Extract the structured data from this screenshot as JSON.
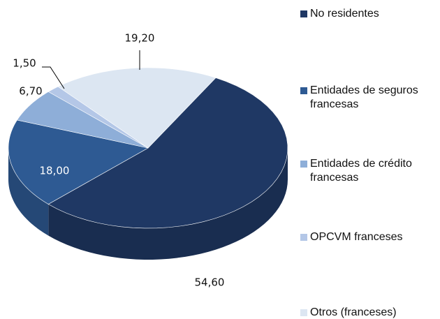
{
  "chart_data": {
    "type": "pie",
    "categories": [
      "No residentes",
      "Entidades de seguros francesas",
      "Entidades de crédito francesas",
      "OPCVM franceses",
      "Otros (franceses)"
    ],
    "values": [
      54.6,
      18.0,
      6.7,
      1.5,
      19.2
    ],
    "value_labels": [
      "54,60",
      "18,00",
      "6,70",
      "1,50",
      "19,20"
    ],
    "colors": [
      "#1f3864",
      "#2e5a93",
      "#8eaed8",
      "#b4c7e7",
      "#dce6f2"
    ],
    "legend": "right"
  }
}
